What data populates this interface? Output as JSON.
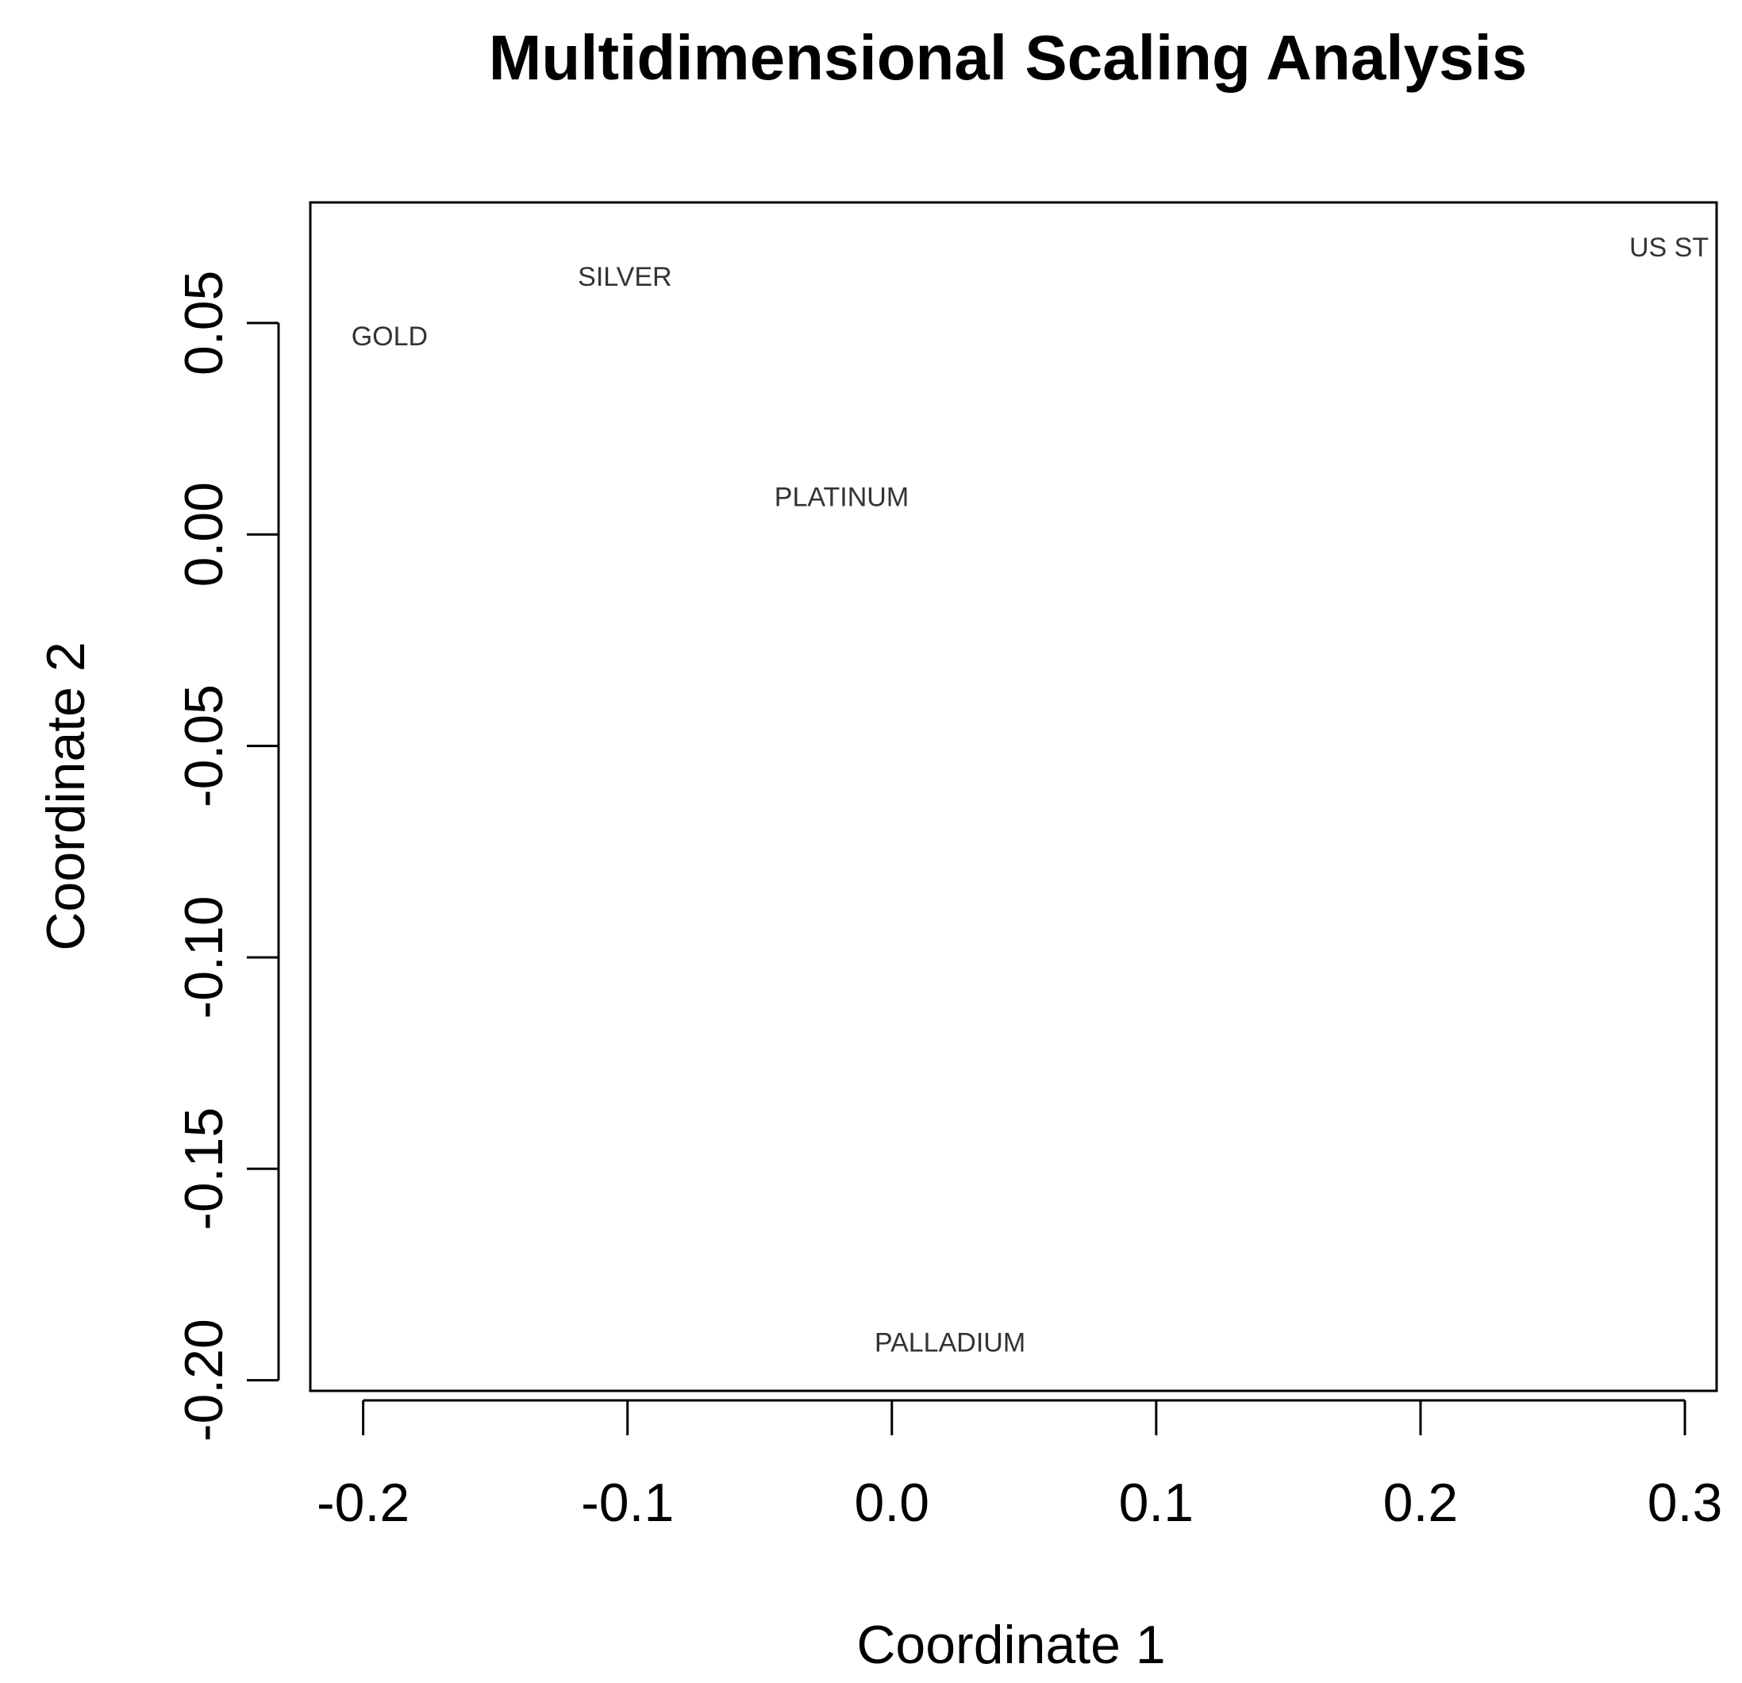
{
  "chart_data": {
    "type": "scatter",
    "title": "Multidimensional Scaling Analysis",
    "xlabel": "Coordinate 1",
    "ylabel": "Coordinate 2",
    "xlim": [
      -0.22,
      0.312
    ],
    "ylim": [
      -0.2025,
      0.0785
    ],
    "xticks": [
      -0.2,
      -0.1,
      0.0,
      0.1,
      0.2,
      0.3
    ],
    "xtick_labels": [
      "-0.2",
      "-0.1",
      "0.0",
      "0.1",
      "0.2",
      "0.3"
    ],
    "yticks": [
      0.05,
      0.0,
      -0.05,
      -0.1,
      -0.15,
      -0.2
    ],
    "ytick_labels": [
      "0.05",
      "0.00",
      "-0.05",
      "-0.10",
      "-0.15",
      "-0.20"
    ],
    "grid": false,
    "legend": "none",
    "marker": "text-label",
    "points": [
      {
        "label": "GOLD",
        "x": -0.19,
        "y": 0.047
      },
      {
        "label": "SILVER",
        "x": -0.101,
        "y": 0.061
      },
      {
        "label": "PLATINUM",
        "x": -0.019,
        "y": 0.009
      },
      {
        "label": "PALLADIUM",
        "x": 0.022,
        "y": -0.191
      },
      {
        "label": "US ST",
        "x": 0.294,
        "y": 0.068
      }
    ]
  }
}
